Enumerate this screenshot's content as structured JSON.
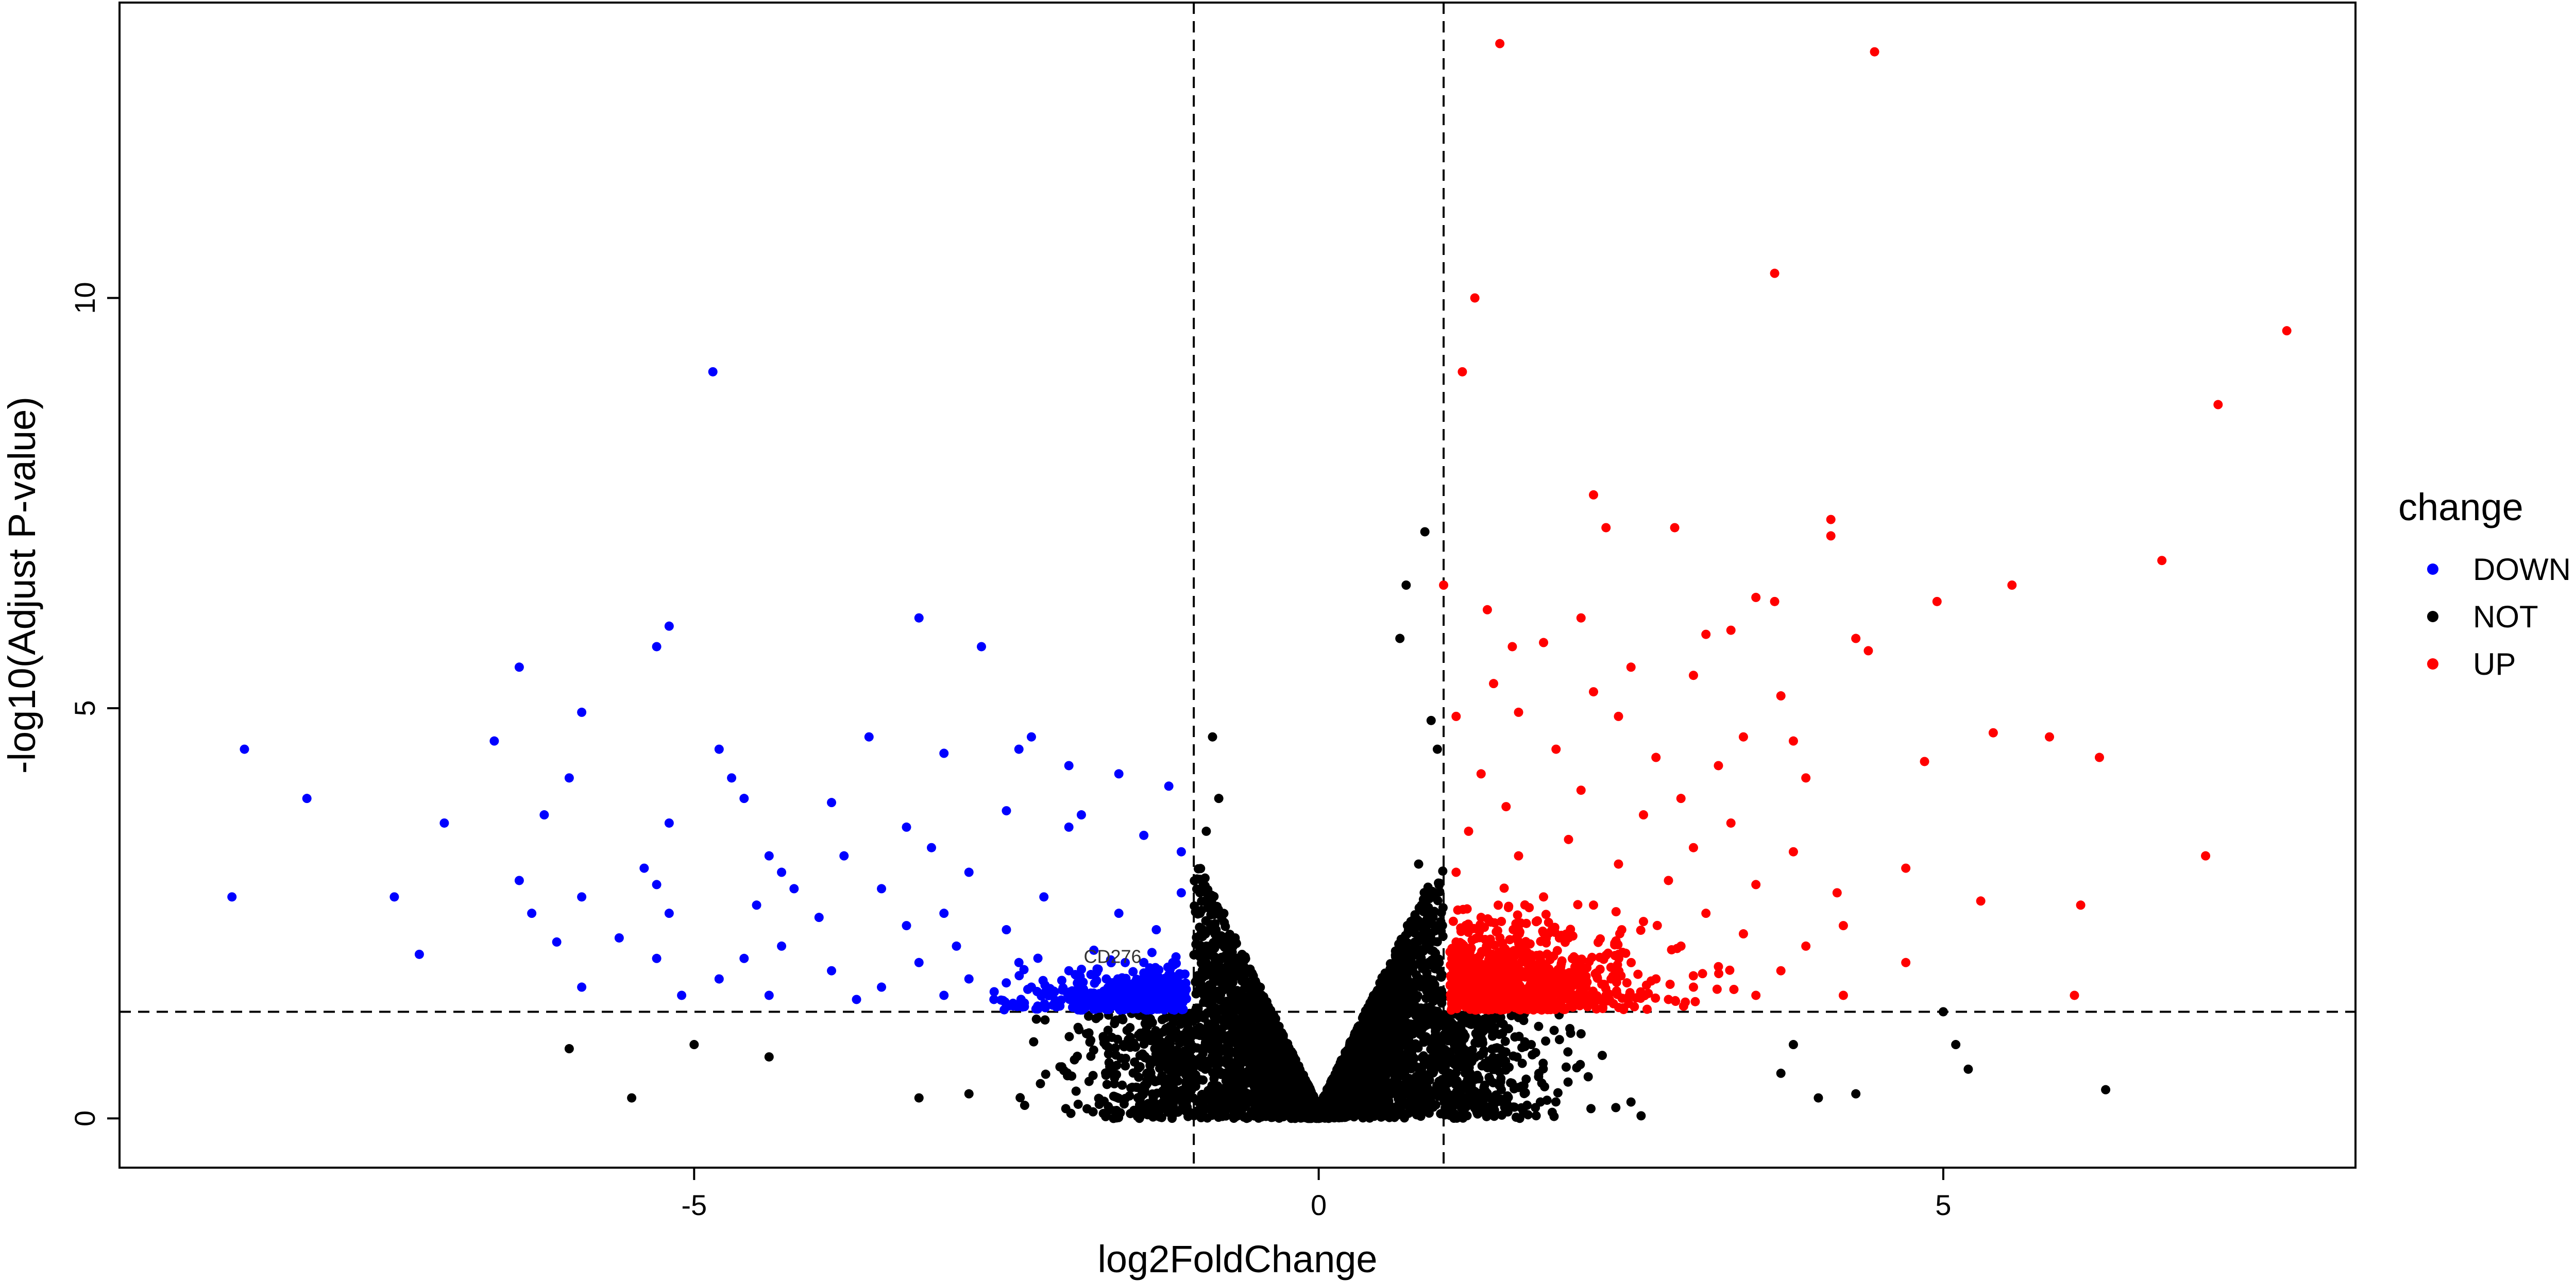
{
  "chart_data": {
    "type": "scatter",
    "title": "",
    "xlabel": "log2FoldChange",
    "ylabel": "-log10(Adjust P-value)",
    "xlim": [
      -9.6,
      8.3
    ],
    "ylim": [
      -0.6,
      13.6
    ],
    "xticks": [
      -5,
      0,
      5
    ],
    "yticks": [
      0,
      5,
      10
    ],
    "x_tick_labels": [
      "-5",
      "0",
      "5"
    ],
    "y_tick_labels": [
      "0",
      "5",
      "10"
    ],
    "thresholds": {
      "x": [
        -1,
        1
      ],
      "y": 1.3
    },
    "grid": false,
    "legend": {
      "title": "change",
      "position": "right"
    },
    "annotations": [
      {
        "text": "CD276",
        "x": -1.65,
        "y": 1.97
      }
    ],
    "series": [
      {
        "name": "DOWN",
        "color": "#0000ff",
        "points": [
          [
            -4.85,
            9.1
          ],
          [
            -3.2,
            6.1
          ],
          [
            -5.2,
            6.0
          ],
          [
            -5.3,
            5.75
          ],
          [
            -2.7,
            5.75
          ],
          [
            -6.4,
            5.5
          ],
          [
            -5.9,
            4.95
          ],
          [
            -3.6,
            4.65
          ],
          [
            -2.3,
            4.65
          ],
          [
            -6.6,
            4.6
          ],
          [
            -8.6,
            4.5
          ],
          [
            -4.8,
            4.5
          ],
          [
            -3.0,
            4.45
          ],
          [
            -2.4,
            4.5
          ],
          [
            -2.0,
            4.3
          ],
          [
            -1.6,
            4.2
          ],
          [
            -1.2,
            4.05
          ],
          [
            -4.7,
            4.15
          ],
          [
            -6.0,
            4.15
          ],
          [
            -8.1,
            3.9
          ],
          [
            -4.6,
            3.9
          ],
          [
            -3.9,
            3.85
          ],
          [
            -2.5,
            3.75
          ],
          [
            -1.9,
            3.7
          ],
          [
            -6.2,
            3.7
          ],
          [
            -7.0,
            3.6
          ],
          [
            -5.2,
            3.6
          ],
          [
            -3.3,
            3.55
          ],
          [
            -2.0,
            3.55
          ],
          [
            -1.4,
            3.45
          ],
          [
            -3.1,
            3.3
          ],
          [
            -4.4,
            3.2
          ],
          [
            -3.8,
            3.2
          ],
          [
            -1.1,
            3.25
          ],
          [
            -5.4,
            3.05
          ],
          [
            -4.3,
            3.0
          ],
          [
            -2.8,
            3.0
          ],
          [
            -6.4,
            2.9
          ],
          [
            -5.3,
            2.85
          ],
          [
            -4.2,
            2.8
          ],
          [
            -3.5,
            2.8
          ],
          [
            -2.2,
            2.7
          ],
          [
            -1.1,
            2.75
          ],
          [
            -8.7,
            2.7
          ],
          [
            -7.4,
            2.7
          ],
          [
            -5.9,
            2.7
          ],
          [
            -4.5,
            2.6
          ],
          [
            -3.0,
            2.5
          ],
          [
            -1.6,
            2.5
          ],
          [
            -6.3,
            2.5
          ],
          [
            -5.2,
            2.5
          ],
          [
            -4.0,
            2.45
          ],
          [
            -3.3,
            2.35
          ],
          [
            -2.5,
            2.3
          ],
          [
            -1.3,
            2.3
          ],
          [
            -5.6,
            2.2
          ],
          [
            -6.1,
            2.15
          ],
          [
            -4.3,
            2.1
          ],
          [
            -2.9,
            2.1
          ],
          [
            -1.8,
            2.05
          ],
          [
            -7.2,
            2.0
          ],
          [
            -5.3,
            1.95
          ],
          [
            -4.6,
            1.95
          ],
          [
            -3.2,
            1.9
          ],
          [
            -2.4,
            1.9
          ],
          [
            -1.4,
            1.9
          ],
          [
            -3.9,
            1.8
          ],
          [
            -2.0,
            1.8
          ],
          [
            -1.2,
            1.75
          ],
          [
            -4.8,
            1.7
          ],
          [
            -2.8,
            1.7
          ],
          [
            -1.7,
            1.7
          ],
          [
            -5.9,
            1.6
          ],
          [
            -3.5,
            1.6
          ],
          [
            -2.3,
            1.6
          ],
          [
            -1.5,
            1.6
          ],
          [
            -5.1,
            1.5
          ],
          [
            -4.4,
            1.5
          ],
          [
            -3.0,
            1.5
          ],
          [
            -1.9,
            1.5
          ],
          [
            -1.1,
            1.5
          ],
          [
            -2.6,
            1.45
          ],
          [
            -1.3,
            1.45
          ],
          [
            -3.7,
            1.45
          ],
          [
            -2.1,
            1.4
          ]
        ]
      },
      {
        "name": "NOT",
        "color": "#000000",
        "points": [
          [
            0.85,
            7.15
          ],
          [
            0.7,
            6.5
          ],
          [
            0.65,
            5.85
          ],
          [
            -0.85,
            4.65
          ],
          [
            -0.8,
            3.9
          ],
          [
            0.9,
            4.85
          ],
          [
            0.95,
            4.5
          ],
          [
            -0.9,
            3.5
          ],
          [
            -0.95,
            2.5
          ],
          [
            0.8,
            3.1
          ],
          [
            -6.0,
            0.85
          ],
          [
            -5.5,
            0.25
          ],
          [
            -5.0,
            0.9
          ],
          [
            -4.4,
            0.75
          ],
          [
            5.0,
            1.3
          ],
          [
            5.1,
            0.9
          ],
          [
            5.2,
            0.6
          ],
          [
            6.3,
            0.35
          ],
          [
            4.0,
            0.25
          ],
          [
            3.7,
            0.55
          ],
          [
            4.3,
            0.3
          ],
          [
            3.8,
            0.9
          ],
          [
            -3.2,
            0.25
          ],
          [
            -2.8,
            0.3
          ],
          [
            2.5,
            0.2
          ],
          [
            -0.3,
            0.3
          ],
          [
            0.3,
            0.3
          ],
          [
            -0.1,
            0.05
          ],
          [
            0.1,
            0.05
          ],
          [
            0.0,
            0.0
          ]
        ]
      },
      {
        "name": "UP",
        "color": "#ff0000",
        "points": [
          [
            1.45,
            13.1
          ],
          [
            4.45,
            13.0
          ],
          [
            3.65,
            10.3
          ],
          [
            1.25,
            10.0
          ],
          [
            7.75,
            9.6
          ],
          [
            1.15,
            9.1
          ],
          [
            7.2,
            8.7
          ],
          [
            2.2,
            7.6
          ],
          [
            4.1,
            7.3
          ],
          [
            4.1,
            7.1
          ],
          [
            2.3,
            7.2
          ],
          [
            2.85,
            7.2
          ],
          [
            6.75,
            6.8
          ],
          [
            5.55,
            6.5
          ],
          [
            1.0,
            6.5
          ],
          [
            3.5,
            6.35
          ],
          [
            3.65,
            6.3
          ],
          [
            4.95,
            6.3
          ],
          [
            1.35,
            6.2
          ],
          [
            2.1,
            6.1
          ],
          [
            3.1,
            5.9
          ],
          [
            3.3,
            5.95
          ],
          [
            4.3,
            5.85
          ],
          [
            4.4,
            5.7
          ],
          [
            1.8,
            5.8
          ],
          [
            1.55,
            5.75
          ],
          [
            2.5,
            5.5
          ],
          [
            3.0,
            5.4
          ],
          [
            1.4,
            5.3
          ],
          [
            2.2,
            5.2
          ],
          [
            3.7,
            5.15
          ],
          [
            1.6,
            4.95
          ],
          [
            2.4,
            4.9
          ],
          [
            1.1,
            4.9
          ],
          [
            3.4,
            4.65
          ],
          [
            5.4,
            4.7
          ],
          [
            5.85,
            4.65
          ],
          [
            3.8,
            4.6
          ],
          [
            1.9,
            4.5
          ],
          [
            2.7,
            4.4
          ],
          [
            6.25,
            4.4
          ],
          [
            4.85,
            4.35
          ],
          [
            3.2,
            4.3
          ],
          [
            1.3,
            4.2
          ],
          [
            3.9,
            4.15
          ],
          [
            2.1,
            4.0
          ],
          [
            2.9,
            3.9
          ],
          [
            1.5,
            3.8
          ],
          [
            2.6,
            3.7
          ],
          [
            3.3,
            3.6
          ],
          [
            1.2,
            3.5
          ],
          [
            2.0,
            3.4
          ],
          [
            3.0,
            3.3
          ],
          [
            3.8,
            3.25
          ],
          [
            7.1,
            3.2
          ],
          [
            1.6,
            3.2
          ],
          [
            2.4,
            3.1
          ],
          [
            4.7,
            3.05
          ],
          [
            1.1,
            3.0
          ],
          [
            2.8,
            2.9
          ],
          [
            3.5,
            2.85
          ],
          [
            4.15,
            2.75
          ],
          [
            1.8,
            2.7
          ],
          [
            5.3,
            2.65
          ],
          [
            6.1,
            2.6
          ],
          [
            2.2,
            2.6
          ],
          [
            3.1,
            2.5
          ],
          [
            1.3,
            2.45
          ],
          [
            2.6,
            2.4
          ],
          [
            4.2,
            2.35
          ],
          [
            1.6,
            2.3
          ],
          [
            3.4,
            2.25
          ],
          [
            2.0,
            2.2
          ],
          [
            1.1,
            2.15
          ],
          [
            2.9,
            2.1
          ],
          [
            3.9,
            2.1
          ],
          [
            1.5,
            2.0
          ],
          [
            2.4,
            2.0
          ],
          [
            4.7,
            1.9
          ],
          [
            1.2,
            1.9
          ],
          [
            3.2,
            1.85
          ],
          [
            2.1,
            1.8
          ],
          [
            3.7,
            1.8
          ],
          [
            1.4,
            1.75
          ],
          [
            2.7,
            1.7
          ],
          [
            1.8,
            1.65
          ],
          [
            3.0,
            1.6
          ],
          [
            4.2,
            1.5
          ],
          [
            1.1,
            1.55
          ],
          [
            2.3,
            1.5
          ],
          [
            6.05,
            1.5
          ],
          [
            3.5,
            1.5
          ],
          [
            1.6,
            1.45
          ],
          [
            2.8,
            1.45
          ],
          [
            1.3,
            1.4
          ]
        ]
      }
    ]
  }
}
